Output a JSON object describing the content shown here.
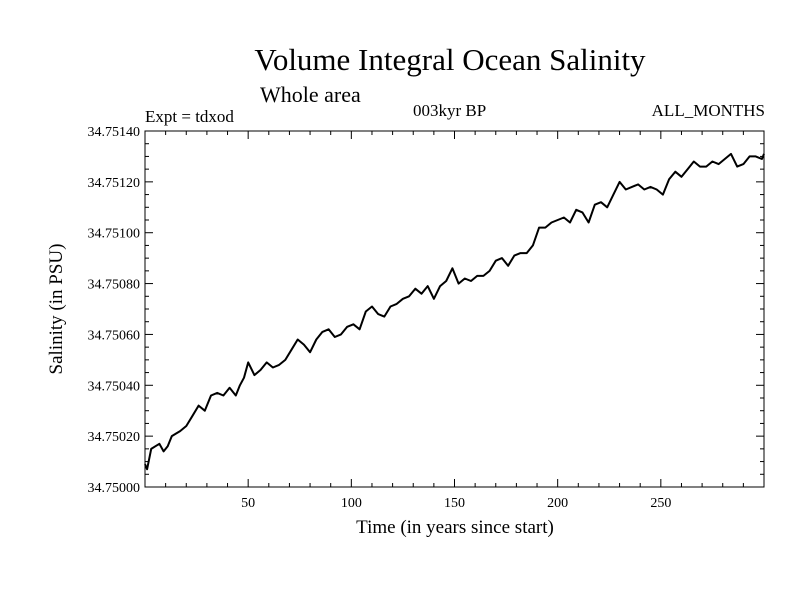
{
  "header": {
    "title": "Volume Integral Ocean Salinity",
    "subtitle": "Whole area",
    "expt": "Expt = tdxod",
    "period": "003kyr BP",
    "months": "ALL_MONTHS"
  },
  "chart_data": {
    "type": "line",
    "title": "Volume Integral Ocean Salinity",
    "subtitle": "Whole area",
    "xlabel": "Time (in years since start)",
    "ylabel": "Salinity (in PSU)",
    "xlim": [
      0,
      300
    ],
    "ylim": [
      34.75,
      34.7514
    ],
    "xticks": [
      50,
      100,
      150,
      200,
      250
    ],
    "yticks": [
      34.75,
      34.7502,
      34.7504,
      34.7506,
      34.7508,
      34.751,
      34.7512,
      34.7514
    ],
    "ytick_labels": [
      "34.75000",
      "34.75020",
      "34.75040",
      "34.75060",
      "34.75080",
      "34.75100",
      "34.75120",
      "34.75140"
    ],
    "grid": false,
    "series": [
      {
        "x": [
          0,
          1,
          3,
          5,
          7,
          9,
          11,
          13,
          15,
          17,
          20,
          23,
          26,
          29,
          32,
          35,
          38,
          41,
          44,
          46,
          48,
          50,
          53,
          56,
          59,
          62,
          65,
          68,
          71,
          74,
          77,
          80,
          83,
          86,
          89,
          92,
          95,
          98,
          101,
          104,
          107,
          110,
          113,
          116,
          119,
          122,
          125,
          128,
          131,
          134,
          137,
          140,
          143,
          146,
          149,
          152,
          155,
          158,
          161,
          164,
          167,
          170,
          173,
          176,
          179,
          182,
          185,
          188,
          191,
          194,
          197,
          200,
          203,
          206,
          209,
          212,
          215,
          218,
          221,
          224,
          227,
          230,
          233,
          236,
          239,
          242,
          245,
          248,
          251,
          254,
          257,
          260,
          263,
          266,
          269,
          272,
          275,
          278,
          281,
          284,
          287,
          290,
          293,
          296,
          299,
          300
        ],
        "y": [
          34.75009,
          34.75007,
          34.75015,
          34.75016,
          34.75017,
          34.75014,
          34.75016,
          34.7502,
          34.75021,
          34.75022,
          34.75024,
          34.75028,
          34.75032,
          34.7503,
          34.75036,
          34.75037,
          34.75036,
          34.75039,
          34.75036,
          34.7504,
          34.75043,
          34.75049,
          34.75044,
          34.75046,
          34.75049,
          34.75047,
          34.75048,
          34.7505,
          34.75054,
          34.75058,
          34.75056,
          34.75053,
          34.75058,
          34.75061,
          34.75062,
          34.75059,
          34.7506,
          34.75063,
          34.75064,
          34.75062,
          34.75069,
          34.75071,
          34.75068,
          34.75067,
          34.75071,
          34.75072,
          34.75074,
          34.75075,
          34.75078,
          34.75076,
          34.75079,
          34.75074,
          34.75079,
          34.75081,
          34.75086,
          34.7508,
          34.75082,
          34.75081,
          34.75083,
          34.75083,
          34.75085,
          34.75089,
          34.7509,
          34.75087,
          34.75091,
          34.75092,
          34.75092,
          34.75095,
          34.75102,
          34.75102,
          34.75104,
          34.75105,
          34.75106,
          34.75104,
          34.75109,
          34.75108,
          34.75104,
          34.75111,
          34.75112,
          34.7511,
          34.75115,
          34.7512,
          34.75117,
          34.75118,
          34.75119,
          34.75117,
          34.75118,
          34.75117,
          34.75115,
          34.75121,
          34.75124,
          34.75122,
          34.75125,
          34.75128,
          34.75126,
          34.75126,
          34.75128,
          34.75127,
          34.75129,
          34.75131,
          34.75126,
          34.75127,
          34.7513,
          34.7513,
          34.75129,
          34.75131
        ]
      }
    ]
  }
}
